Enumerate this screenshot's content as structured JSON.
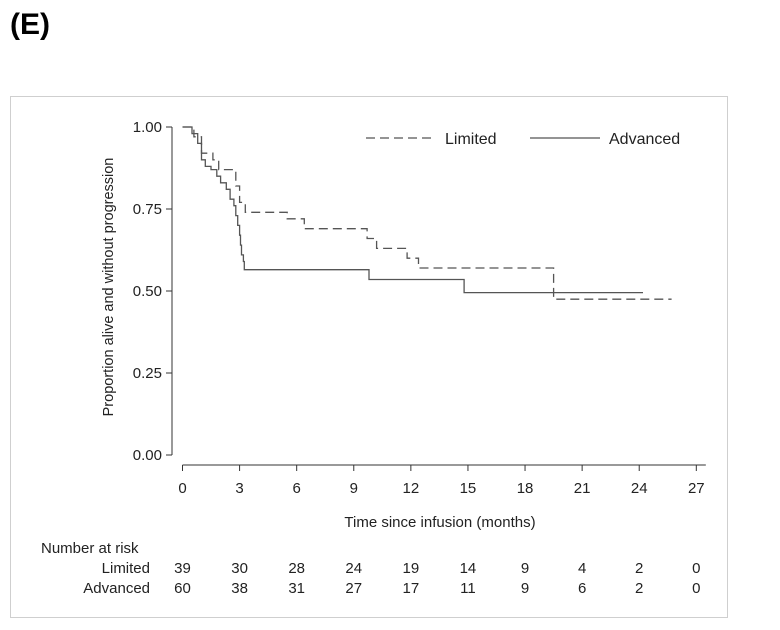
{
  "panel_label": "(E)",
  "chart_data": {
    "type": "line",
    "subtype": "kaplan-meier",
    "xlabel": "Time since infusion (months)",
    "ylabel": "Proportion alive and without progression",
    "xlim": [
      -1,
      27
    ],
    "ylim": [
      0,
      1.0
    ],
    "x_ticks": [
      "0",
      "3",
      "6",
      "9",
      "12",
      "15",
      "18",
      "21",
      "24",
      "27"
    ],
    "y_ticks": [
      "0.00",
      "0.25",
      "0.50",
      "0.75",
      "1.00"
    ],
    "grid": false,
    "legend_position": "top-right",
    "series": [
      {
        "name": "Limited",
        "style": "dashed",
        "color": "#555555",
        "steps": [
          [
            0,
            1.0
          ],
          [
            0.6,
            0.97
          ],
          [
            1.0,
            0.92
          ],
          [
            1.6,
            0.9
          ],
          [
            1.9,
            0.87
          ],
          [
            2.8,
            0.82
          ],
          [
            3.0,
            0.77
          ],
          [
            3.3,
            0.74
          ],
          [
            5.5,
            0.72
          ],
          [
            6.4,
            0.69
          ],
          [
            9.7,
            0.66
          ],
          [
            10.2,
            0.63
          ],
          [
            11.8,
            0.6
          ],
          [
            12.4,
            0.57
          ],
          [
            19.5,
            0.475
          ],
          [
            25.7,
            0.475
          ]
        ]
      },
      {
        "name": "Advanced",
        "style": "solid",
        "color": "#555555",
        "steps": [
          [
            0,
            1.0
          ],
          [
            0.5,
            0.98
          ],
          [
            0.8,
            0.95
          ],
          [
            1.0,
            0.9
          ],
          [
            1.2,
            0.88
          ],
          [
            1.5,
            0.87
          ],
          [
            1.8,
            0.85
          ],
          [
            2.0,
            0.83
          ],
          [
            2.3,
            0.81
          ],
          [
            2.5,
            0.78
          ],
          [
            2.7,
            0.76
          ],
          [
            2.8,
            0.73
          ],
          [
            2.9,
            0.7
          ],
          [
            3.0,
            0.67
          ],
          [
            3.05,
            0.64
          ],
          [
            3.1,
            0.61
          ],
          [
            3.2,
            0.59
          ],
          [
            3.25,
            0.565
          ],
          [
            9.8,
            0.535
          ],
          [
            14.8,
            0.495
          ],
          [
            24.2,
            0.495
          ]
        ]
      }
    ],
    "risk_table": {
      "title": "Number at risk",
      "rows": [
        {
          "label": "Limited",
          "values": [
            "39",
            "30",
            "28",
            "24",
            "19",
            "14",
            "9",
            "4",
            "2",
            "0"
          ]
        },
        {
          "label": "Advanced",
          "values": [
            "60",
            "38",
            "31",
            "27",
            "17",
            "11",
            "9",
            "6",
            "2",
            "0"
          ]
        }
      ]
    }
  }
}
